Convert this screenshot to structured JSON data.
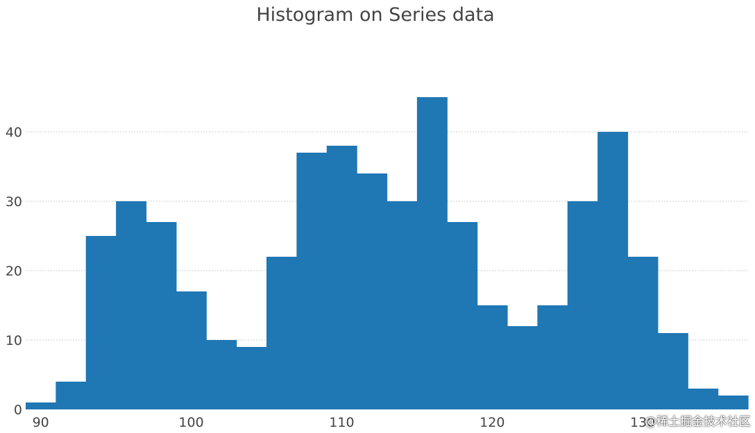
{
  "chart_data": {
    "type": "bar",
    "title": "Histogram on Series data",
    "xlabel": "",
    "ylabel": "",
    "bin_width": 2,
    "bin_start": 89,
    "values": [
      1,
      4,
      25,
      30,
      27,
      17,
      10,
      9,
      22,
      37,
      38,
      34,
      30,
      45,
      27,
      15,
      12,
      15,
      30,
      40,
      22,
      11,
      3,
      2
    ],
    "xlim": [
      89,
      137
    ],
    "ylim": [
      0,
      47
    ],
    "x_ticks": [
      90,
      100,
      110,
      120,
      130
    ],
    "y_ticks": [
      0,
      10,
      20,
      30,
      40
    ],
    "grid": true,
    "bar_color": "#1f77b4"
  },
  "watermark": "@稀土掘金技术社区"
}
